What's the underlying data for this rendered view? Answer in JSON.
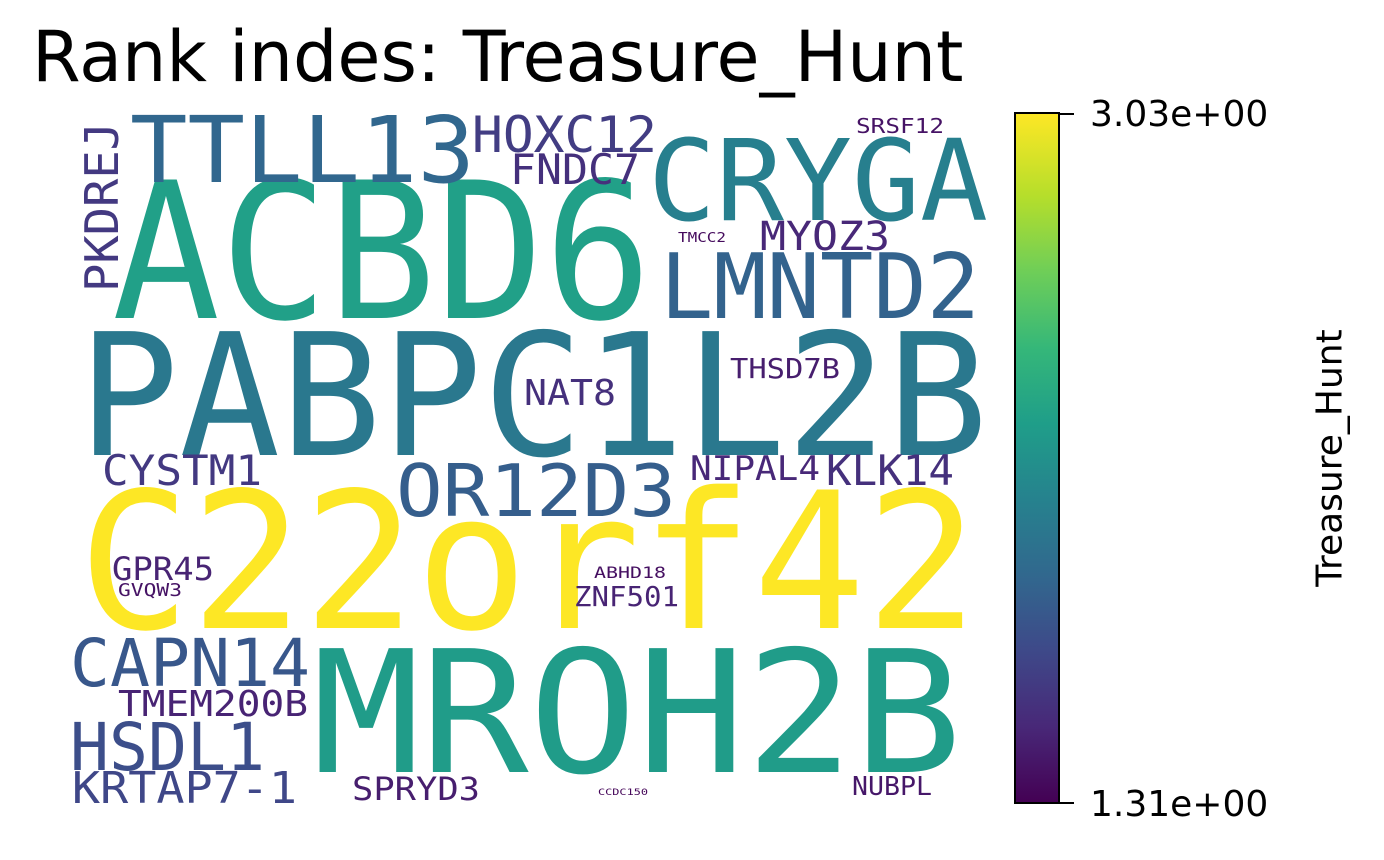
{
  "chart_data": {
    "type": "wordcloud",
    "title": "Rank indes: Treasure_Hunt",
    "colorbar": {
      "label": "Treasure_Hunt",
      "min_label": "1.31e+00",
      "max_label": "3.03e+00",
      "min": 1.31,
      "max": 3.03,
      "colormap": "viridis"
    },
    "words": [
      {
        "text": "C22orf42",
        "value": 3.03
      },
      {
        "text": "ACBD6",
        "value": 2.28
      },
      {
        "text": "MROH2B",
        "value": 2.25
      },
      {
        "text": "PABPC1L2B",
        "value": 2.0
      },
      {
        "text": "CRYGA",
        "value": 2.05
      },
      {
        "text": "LMNTD2",
        "value": 1.85
      },
      {
        "text": "TTLL13",
        "value": 1.88
      },
      {
        "text": "OR12D3",
        "value": 1.82
      },
      {
        "text": "CAPN14",
        "value": 1.78
      },
      {
        "text": "HSDL1",
        "value": 1.72
      },
      {
        "text": "KRTAP7-1",
        "value": 1.68
      },
      {
        "text": "HOXC12",
        "value": 1.62
      },
      {
        "text": "PKDREJ",
        "value": 1.6
      },
      {
        "text": "CYSTM1",
        "value": 1.6
      },
      {
        "text": "KLK14",
        "value": 1.55
      },
      {
        "text": "FNDC7",
        "value": 1.55
      },
      {
        "text": "MYOZ3",
        "value": 1.5
      },
      {
        "text": "NIPAL4",
        "value": 1.5
      },
      {
        "text": "TMEM200B",
        "value": 1.48
      },
      {
        "text": "NAT8",
        "value": 1.55
      },
      {
        "text": "GPR45",
        "value": 1.48
      },
      {
        "text": "THSD7B",
        "value": 1.45
      },
      {
        "text": "ZNF501",
        "value": 1.48
      },
      {
        "text": "SPRYD3",
        "value": 1.45
      },
      {
        "text": "NUBPL",
        "value": 1.42
      },
      {
        "text": "SRSF12",
        "value": 1.4
      },
      {
        "text": "GVQW3",
        "value": 1.4
      },
      {
        "text": "ABHD18",
        "value": 1.38
      },
      {
        "text": "TMCC2",
        "value": 1.36
      },
      {
        "text": "CCDC150",
        "value": 1.33
      }
    ]
  }
}
